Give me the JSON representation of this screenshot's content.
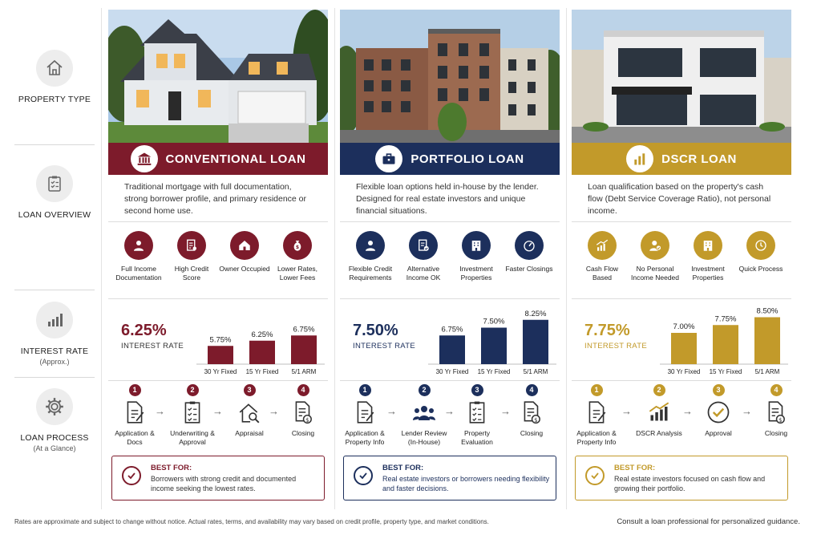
{
  "labels": {
    "property_type": "PROPERTY TYPE",
    "loan_overview": "LOAN OVERVIEW",
    "interest_rate": "INTEREST RATE",
    "interest_rate_sub": "(Approx.)",
    "loan_process": "LOAN PROCESS",
    "loan_process_sub": "(At a Glance)"
  },
  "colors": {
    "conventional": "#7d1b2b",
    "portfolio": "#1c2f5c",
    "dscr": "#c29a2a"
  },
  "loans": [
    {
      "title": "CONVENTIONAL LOAN",
      "banner_icon": "bank-icon",
      "overview": "Traditional mortgage with full documentation, strong borrower profile, and primary residence or second home use.",
      "features": [
        {
          "icon": "person-icon",
          "label": "Full Income Documentation"
        },
        {
          "icon": "document-icon",
          "label": "High Credit Score"
        },
        {
          "icon": "house-icon",
          "label": "Owner Occupied"
        },
        {
          "icon": "money-bag-icon",
          "label": "Lower Rates, Lower Fees"
        }
      ],
      "rate": "6.25%",
      "rate_label": "INTEREST RATE",
      "steps": [
        {
          "num": "1",
          "icon": "document-icon",
          "label": "Application & Docs"
        },
        {
          "num": "2",
          "icon": "checklist-icon",
          "label": "Underwriting & Approval"
        },
        {
          "num": "3",
          "icon": "house-search-icon",
          "label": "Appraisal"
        },
        {
          "num": "4",
          "icon": "closing-doc-icon",
          "label": "Closing"
        }
      ],
      "best_for_heading": "BEST FOR:",
      "best_for": "Borrowers with strong credit and documented income seeking the lowest rates."
    },
    {
      "title": "PORTFOLIO LOAN",
      "banner_icon": "briefcase-icon",
      "overview": "Flexible loan options held in-house by the lender. Designed for real estate investors and unique financial situations.",
      "features": [
        {
          "icon": "person-icon",
          "label": "Flexible Credit Requirements"
        },
        {
          "icon": "document-check-icon",
          "label": "Alternative Income OK"
        },
        {
          "icon": "building-icon",
          "label": "Investment Properties"
        },
        {
          "icon": "speedometer-icon",
          "label": "Faster Closings"
        }
      ],
      "rate": "7.50%",
      "rate_label": "INTEREST RATE",
      "steps": [
        {
          "num": "1",
          "icon": "document-icon",
          "label": "Application & Property Info"
        },
        {
          "num": "2",
          "icon": "people-icon",
          "label": "Lender Review (In-House)"
        },
        {
          "num": "3",
          "icon": "checklist-icon",
          "label": "Property Evaluation"
        },
        {
          "num": "4",
          "icon": "closing-doc-icon",
          "label": "Closing"
        }
      ],
      "best_for_heading": "BEST FOR:",
      "best_for": "Real estate investors or borrowers needing flexibility and faster decisions."
    },
    {
      "title": "DSCR LOAN",
      "banner_icon": "bar-chart-icon",
      "overview": "Loan qualification based on the property's cash flow (Debt Service Coverage Ratio), not personal income.",
      "features": [
        {
          "icon": "trend-chart-icon",
          "label": "Cash Flow Based"
        },
        {
          "icon": "person-check-icon",
          "label": "No Personal Income Needed"
        },
        {
          "icon": "building-icon",
          "label": "Investment Properties"
        },
        {
          "icon": "clock-icon",
          "label": "Quick Process"
        }
      ],
      "rate": "7.75%",
      "rate_label": "INTEREST RATE",
      "steps": [
        {
          "num": "1",
          "icon": "document-icon",
          "label": "Application & Property Info"
        },
        {
          "num": "2",
          "icon": "trend-chart-icon",
          "label": "DSCR Analysis"
        },
        {
          "num": "3",
          "icon": "check-circle-icon",
          "label": "Approval"
        },
        {
          "num": "4",
          "icon": "closing-doc-icon",
          "label": "Closing"
        }
      ],
      "best_for_heading": "BEST FOR:",
      "best_for": "Real estate investors focused on cash flow and growing their portfolio."
    }
  ],
  "chart_data": [
    {
      "type": "bar",
      "categories": [
        "30 Yr Fixed",
        "15 Yr Fixed",
        "5/1 ARM"
      ],
      "values": [
        5.75,
        6.25,
        6.75
      ],
      "value_labels": [
        "5.75%",
        "6.25%",
        "6.75%"
      ],
      "color": "#7d1b2b"
    },
    {
      "type": "bar",
      "categories": [
        "30 Yr Fixed",
        "15 Yr Fixed",
        "5/1 ARM"
      ],
      "values": [
        6.75,
        7.5,
        8.25
      ],
      "value_labels": [
        "6.75%",
        "7.50%",
        "8.25%"
      ],
      "color": "#1c2f5c"
    },
    {
      "type": "bar",
      "categories": [
        "30 Yr Fixed",
        "15 Yr Fixed",
        "5/1 ARM"
      ],
      "values": [
        7.0,
        7.75,
        8.5
      ],
      "value_labels": [
        "7.00%",
        "7.75%",
        "8.50%"
      ],
      "color": "#c29a2a"
    }
  ],
  "footer": {
    "disclaimer": "Rates are approximate and subject to change without notice. Actual rates, terms, and availability may vary based on credit profile, property type, and market conditions.",
    "cta": "Consult a loan professional for personalized guidance."
  }
}
